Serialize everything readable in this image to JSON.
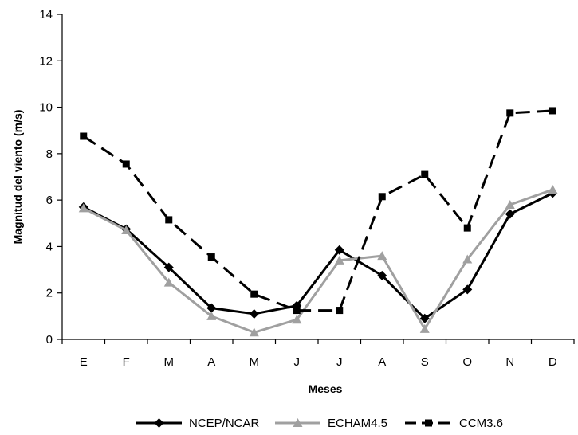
{
  "chart_data": {
    "type": "line",
    "title": "",
    "xlabel": "Meses",
    "ylabel": "Magnitud del viento (m/s)",
    "ylim": [
      0,
      14
    ],
    "yticks": [
      0,
      2,
      4,
      6,
      8,
      10,
      12,
      14
    ],
    "categories": [
      "E",
      "F",
      "M",
      "A",
      "M",
      "J",
      "J",
      "A",
      "S",
      "O",
      "N",
      "D"
    ],
    "grid": false,
    "legend_position": "bottom",
    "series": [
      {
        "name": "NCEP/NCAR",
        "color": "#000000",
        "marker": "diamond",
        "line_style": "solid",
        "values": [
          5.7,
          4.75,
          3.1,
          1.35,
          1.1,
          1.45,
          3.85,
          2.75,
          0.9,
          2.15,
          5.4,
          6.3
        ]
      },
      {
        "name": "ECHAM4.5",
        "color": "#a0a0a0",
        "marker": "triangle",
        "line_style": "solid",
        "values": [
          5.65,
          4.7,
          2.45,
          1.0,
          0.3,
          0.85,
          3.4,
          3.6,
          0.45,
          3.45,
          5.8,
          6.45
        ]
      },
      {
        "name": "CCM3.6",
        "color": "#000000",
        "marker": "square",
        "line_style": "dashed",
        "values": [
          8.75,
          7.55,
          5.15,
          3.55,
          1.95,
          1.25,
          1.25,
          6.15,
          7.1,
          4.8,
          9.75,
          9.85
        ]
      }
    ]
  }
}
